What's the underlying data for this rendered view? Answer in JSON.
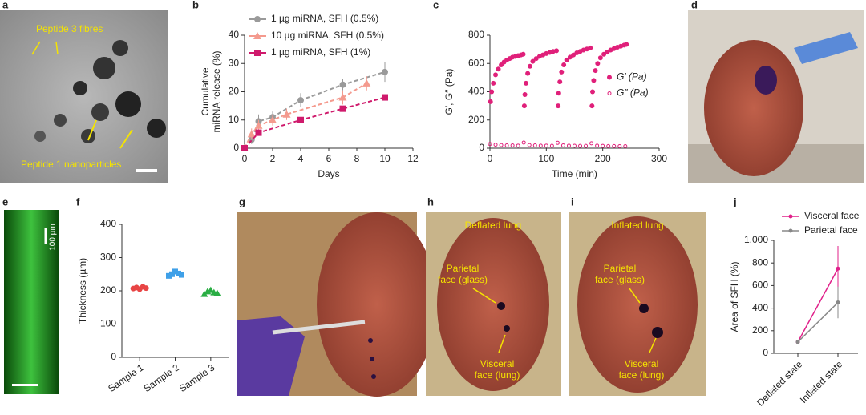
{
  "panel_labels": [
    "a",
    "b",
    "c",
    "d",
    "e",
    "f",
    "g",
    "h",
    "i",
    "j"
  ],
  "photo_labels": {
    "a": [
      "Peptide 3 fibres",
      "Peptide 1 nanoparticles"
    ],
    "e": [
      "100 µm"
    ],
    "h": [
      [
        "Deflated lung"
      ],
      [
        "Parietal",
        "face (glass)"
      ],
      [
        "Visceral",
        "face (lung)"
      ]
    ],
    "i": [
      [
        "Inflated lung"
      ],
      [
        "Parietal",
        "face (glass)"
      ],
      [
        "Visceral",
        "face (lung)"
      ]
    ]
  },
  "chart_data": [
    {
      "type": "line",
      "xlabel": "Days",
      "ylabel": [
        "Cumulative",
        "miRNA release (%)"
      ],
      "xlim": [
        0,
        12
      ],
      "xticks": [
        0,
        2,
        4,
        6,
        8,
        10,
        12
      ],
      "ylim": [
        0,
        40
      ],
      "yticks": [
        0,
        10,
        20,
        30,
        40
      ],
      "legend": "upper left",
      "series": [
        {
          "name": "1 µg miRNA, SFH (0.5%)",
          "color": "#9a9a9a",
          "marker": "circle",
          "x": [
            0,
            0.5,
            1,
            2,
            4,
            7,
            10
          ],
          "values": [
            0,
            3,
            9.5,
            11,
            17,
            22.5,
            27
          ],
          "errors": [
            1,
            1.5,
            2.5,
            2,
            2.5,
            2,
            3.5
          ]
        },
        {
          "name": "10 µg miRNA, SFH (0.5%)",
          "color": "#f49a8e",
          "marker": "triangle",
          "x": [
            0,
            0.5,
            1,
            2,
            3,
            7,
            8.7
          ],
          "values": [
            0,
            5,
            8,
            10,
            12,
            18,
            23
          ],
          "errors": [
            1,
            2,
            2,
            2,
            2,
            2.5,
            2.5
          ]
        },
        {
          "name": "1 µg miRNA, SFH (1%)",
          "color": "#cf1a6c",
          "marker": "square",
          "x": [
            0,
            1,
            4,
            7,
            10
          ],
          "values": [
            0,
            5.5,
            10,
            14,
            18
          ]
        }
      ]
    },
    {
      "type": "scatter",
      "xlabel": "Time (min)",
      "ylabel": "G′, G″ (Pa)",
      "xlim": [
        0,
        300
      ],
      "xticks": [
        0,
        100,
        200,
        300
      ],
      "ylim": [
        0,
        800
      ],
      "yticks": [
        0,
        200,
        400,
        600,
        800
      ],
      "legend": "center right",
      "series": [
        {
          "name": "G′ (Pa)",
          "color": "#e0207a",
          "marker": "circle",
          "x": [
            1,
            3,
            6,
            10,
            15,
            20,
            25,
            30,
            35,
            40,
            45,
            50,
            55,
            59,
            61,
            62,
            64,
            67,
            71,
            76,
            82,
            88,
            94,
            100,
            106,
            112,
            118,
            121,
            122,
            124,
            127,
            131,
            136,
            142,
            148,
            154,
            160,
            166,
            172,
            178,
            181,
            182,
            184,
            187,
            191,
            196,
            202,
            208,
            214,
            220,
            226,
            232,
            238,
            242
          ],
          "values": [
            330,
            400,
            460,
            520,
            560,
            590,
            610,
            625,
            635,
            645,
            650,
            655,
            660,
            665,
            300,
            380,
            460,
            530,
            580,
            615,
            635,
            650,
            660,
            670,
            678,
            685,
            690,
            300,
            390,
            470,
            540,
            590,
            625,
            645,
            660,
            675,
            685,
            695,
            702,
            710,
            300,
            400,
            480,
            550,
            600,
            640,
            665,
            680,
            695,
            705,
            715,
            722,
            730,
            735
          ]
        },
        {
          "name": "G″ (Pa)",
          "color": "#e0207a",
          "marker": "open-circle",
          "x": [
            0,
            10,
            20,
            30,
            40,
            50,
            60,
            70,
            80,
            90,
            100,
            110,
            120,
            130,
            140,
            150,
            160,
            170,
            180,
            190,
            200,
            210,
            220,
            230,
            240
          ],
          "values": [
            30,
            25,
            22,
            20,
            20,
            18,
            40,
            22,
            20,
            18,
            18,
            17,
            38,
            20,
            18,
            17,
            16,
            16,
            35,
            18,
            16,
            15,
            15,
            14,
            14
          ]
        }
      ]
    },
    {
      "type": "dot",
      "ylabel": "Thickness (µm)",
      "ylim": [
        0,
        400
      ],
      "yticks": [
        0,
        100,
        200,
        300,
        400
      ],
      "categories": [
        "Sample 1",
        "Sample 2",
        "Sample 3"
      ],
      "colors": [
        "#e84545",
        "#3fa0e8",
        "#2aae44"
      ],
      "markers": [
        "circle",
        "square",
        "triangle"
      ],
      "values": [
        [
          207,
          210,
          205,
          212,
          208
        ],
        [
          245,
          250,
          258,
          252,
          248
        ],
        [
          190,
          198,
          202,
          195,
          193
        ]
      ]
    },
    {
      "type": "catline",
      "ylabel": "Area of SFH (%)",
      "ylim": [
        0,
        1000
      ],
      "yticks": [
        0,
        200,
        400,
        600,
        800,
        {
          "value": 1000,
          "label": "1,000"
        }
      ],
      "categories": [
        "Deflated state",
        "Inflated state"
      ],
      "legend": "upper right",
      "series": [
        {
          "name": "Visceral face",
          "color": "#e0208a",
          "values": [
            100,
            750
          ],
          "errors": [
            0,
            200
          ]
        },
        {
          "name": "Parietal face",
          "color": "#888888",
          "values": [
            100,
            450
          ],
          "errors": [
            0,
            140
          ]
        }
      ]
    }
  ]
}
